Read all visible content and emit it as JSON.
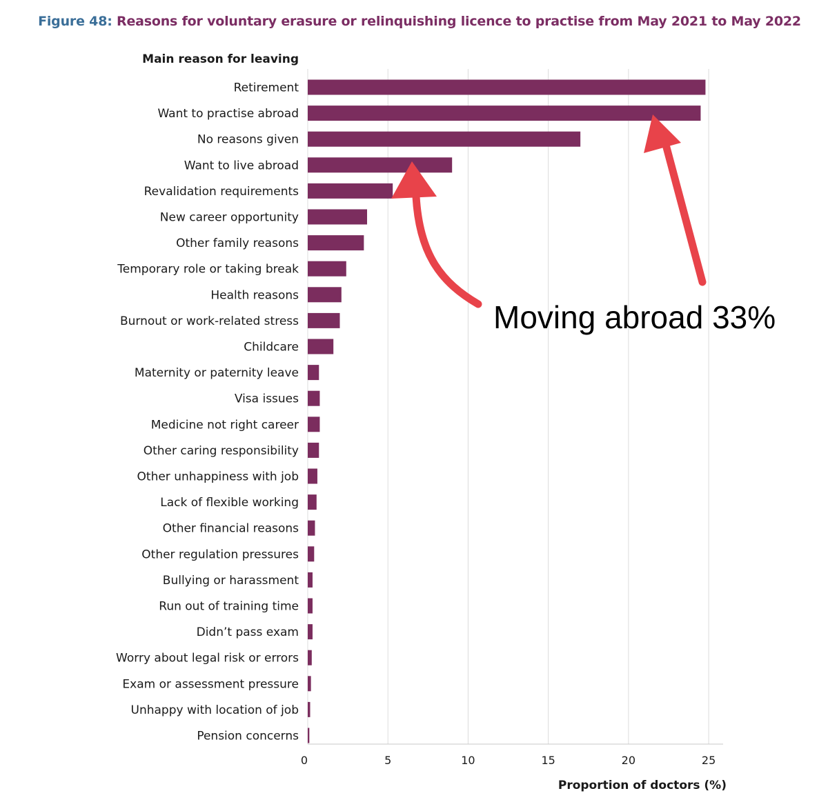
{
  "figure": {
    "number": "Figure 48:",
    "title": " Reasons for voluntary erasure or relinquishing licence to practise from May 2021 to May 2022"
  },
  "annotation": {
    "text": "Moving abroad 33%",
    "arrow_color": "#e8434a"
  },
  "colors": {
    "bar": "#7b2d5e",
    "grid": "#dcdcdc",
    "axis": "#c8c8c8"
  },
  "chart_data": {
    "type": "bar",
    "orientation": "horizontal",
    "ylabel": "Main reason for leaving",
    "xlabel": "Proportion of doctors (%)",
    "xlim": [
      0,
      25.9
    ],
    "xticks": [
      0,
      5,
      10,
      15,
      20,
      25
    ],
    "grid": true,
    "categories": [
      "Retirement",
      "Want to practise abroad",
      "No reasons given",
      "Want to live abroad",
      "Revalidation requirements",
      "New career opportunity",
      "Other family reasons",
      "Temporary role or taking break",
      "Health reasons",
      "Burnout or work-related stress",
      "Childcare",
      "Maternity or paternity leave",
      "Visa issues",
      "Medicine not right career",
      "Other caring responsibility",
      "Other unhappiness with job",
      "Lack of flexible working",
      "Other financial reasons",
      "Other regulation pressures",
      "Bullying or harassment",
      "Run out of training time",
      "Didn’t pass exam",
      "Worry about legal risk or errors",
      "Exam or assessment pressure",
      "Unhappy with location of job",
      "Pension concerns"
    ],
    "values": [
      24.8,
      24.5,
      17.0,
      9.0,
      5.3,
      3.7,
      3.5,
      2.4,
      2.1,
      2.0,
      1.6,
      0.7,
      0.75,
      0.75,
      0.7,
      0.6,
      0.55,
      0.45,
      0.4,
      0.3,
      0.3,
      0.3,
      0.25,
      0.2,
      0.15,
      0.1
    ]
  }
}
